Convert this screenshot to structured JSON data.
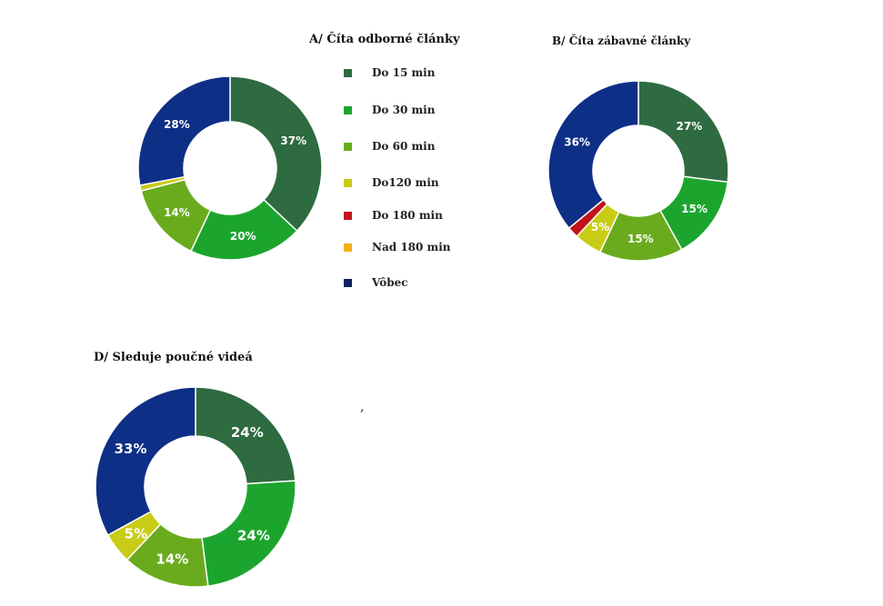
{
  "chart_data": [
    {
      "type": "pie",
      "title": "A/ Číta odborné články",
      "categories": [
        "Do 15 min",
        "Do 30 min",
        "Do 60 min",
        "Do120 min",
        "Do 180 min",
        "Nad 180 min",
        "Vôbec"
      ],
      "values": [
        37,
        20,
        14,
        1,
        0,
        0,
        28
      ],
      "data_labels": [
        "37%",
        "20%",
        "14%",
        "",
        "",
        "",
        "28%"
      ]
    },
    {
      "type": "pie",
      "title": "B/ Číta zábavné články",
      "categories": [
        "Do 15 min",
        "Do 30 min",
        "Do 60 min",
        "Do120 min",
        "Do 180 min",
        "Nad 180 min",
        "Vôbec"
      ],
      "values": [
        27,
        15,
        15,
        5,
        2,
        0,
        36
      ],
      "data_labels": [
        "27%",
        "15%",
        "15%",
        "5%",
        "",
        "",
        "36%"
      ]
    },
    {
      "type": "pie",
      "title": "D/ Sleduje poučné videá",
      "categories": [
        "Do 15 min",
        "Do 30 min",
        "Do 60 min",
        "Do120 min",
        "Do 180 min",
        "Nad 180 min",
        "Vôbec"
      ],
      "values": [
        24,
        24,
        14,
        5,
        0,
        0,
        33
      ],
      "data_labels": [
        "24%",
        "24%",
        "14%",
        "5%",
        "",
        "",
        "33%"
      ]
    }
  ],
  "legend": {
    "items": [
      {
        "label": "Do 15 min",
        "color": "#2e6b40"
      },
      {
        "label": "Do 30 min",
        "color": "#1ca52e"
      },
      {
        "label": "Do 60 min",
        "color": "#6aab1e"
      },
      {
        "label": "Do120 min",
        "color": "#c9cc16"
      },
      {
        "label": "Do 180 min",
        "color": "#c0141c"
      },
      {
        "label": "Nad 180 min",
        "color": "#f0b016"
      },
      {
        "label": "Vôbec",
        "color": "#0e2460"
      }
    ]
  },
  "colors": {
    "slices": [
      "#2e6b40",
      "#1ca52e",
      "#6aab1e",
      "#c9cc16",
      "#c0141c",
      "#f0b016",
      "#0e2f86"
    ]
  },
  "stray_mark": ","
}
